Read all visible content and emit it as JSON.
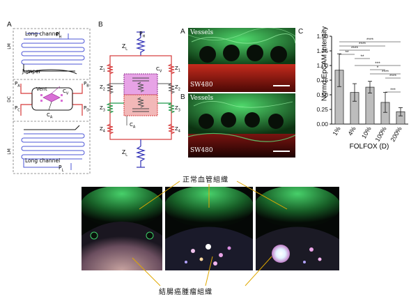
{
  "figure": {
    "panel_a_letter": "A",
    "panel_b_letter": "B",
    "micro_a_letter": "A",
    "micro_b_letter": "B",
    "panel_c_letter": "C",
    "device": {
      "long_channel_top": "Long channel",
      "p_h": "P",
      "p_h_sub": "H",
      "lm_top": "LM",
      "jumper": "Jumper",
      "dc": "DC",
      "pa": "P",
      "pa_sub": "A",
      "pb": "P",
      "pb_sub": "B",
      "pc": "P",
      "pc_sub": "C",
      "pd": "P",
      "pd_sub": "D",
      "vent": "Vent",
      "cv": "C",
      "cv_sub": "V",
      "ca": "C",
      "ca_sub": "A",
      "lm_bottom": "LM",
      "long_channel_bottom": "Long channel",
      "p_l": "P",
      "p_l_sub": "L"
    },
    "circuit": {
      "ph": "P",
      "ph_sub": "H",
      "zl_top": "Z",
      "zl_top_sub": "L",
      "z1_left": "Z",
      "z1_left_sub": "1",
      "z1_right": "Z",
      "z1_right_sub": "1",
      "cv": "C",
      "cv_sub": "V",
      "z2_left": "Z",
      "z2_left_sub": "2",
      "z2_right": "Z",
      "z2_right_sub": "2",
      "z3_left": "Z",
      "z3_left_sub": "3",
      "z3_right": "Z",
      "z3_right_sub": "3",
      "ca": "C",
      "ca_sub": "A",
      "z4_left": "Z",
      "z4_left_sub": "4",
      "z4_right": "Z",
      "z4_right_sub": "4",
      "zl_bottom": "Z",
      "zl_bottom_sub": "L"
    },
    "micrographs": {
      "a_top_label": "Vessels",
      "a_bottom_label": "SW480",
      "b_top_label": "Vessels",
      "b_bottom_label": "SW480"
    },
    "annotations": {
      "normal_tissue": "正常血管組織",
      "tumor_tissue": "結腸癌腫瘤組織"
    },
    "colors": {
      "vessel_green": "#3fd16b",
      "tumor_red": "#d8251f",
      "bar_gray": "#bdbdbd",
      "pointer_gold": "#e0a800",
      "channel_blue": "#4b55d6",
      "channel_red": "#d63a3a"
    }
  },
  "chart_data": {
    "type": "bar",
    "title": "",
    "xlabel": "FOLFOX (D)",
    "ylabel": "Normd EpCAM Intensity",
    "categories": [
      "1%",
      "4%",
      "10%",
      "100%",
      "200%"
    ],
    "values": [
      0.92,
      0.54,
      0.63,
      0.37,
      0.21
    ],
    "errors": [
      0.28,
      0.15,
      0.1,
      0.17,
      0.07
    ],
    "ylim": [
      0,
      1.5
    ],
    "yticks": [
      "0.00",
      "0.25",
      "0.50",
      "0.75",
      "1.00",
      "1.25",
      "1.50"
    ],
    "significance": [
      "****",
      "****",
      "****",
      "**",
      "**",
      "***",
      "*",
      "****",
      "****",
      "***"
    ],
    "grid": false
  }
}
